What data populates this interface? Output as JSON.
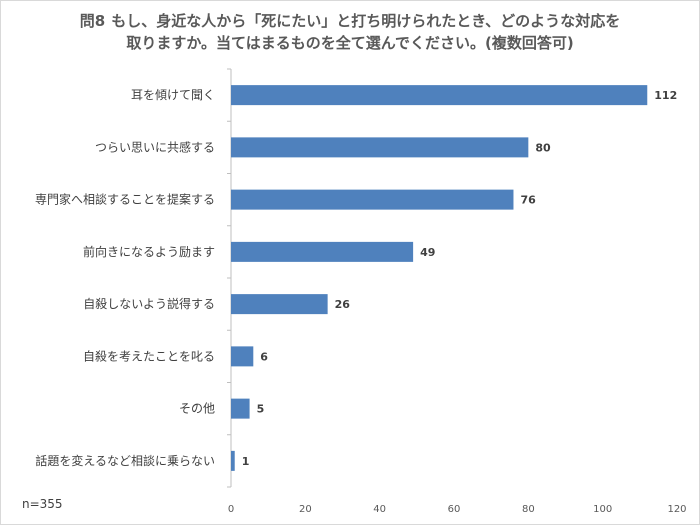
{
  "chart_data": {
    "type": "bar",
    "orientation": "horizontal",
    "question_number": "問8",
    "title_line1": "もし、身近な人から「死にたい」と打ち明けられたとき、どのような対応を",
    "title_line2": "取りますか。当てはまるものを全て選んでください。(複数回答可)",
    "categories": [
      "耳を傾けて聞く",
      "つらい思いに共感する",
      "専門家へ相談することを提案する",
      "前向きになるよう励ます",
      "自殺しないよう説得する",
      "自殺を考えたことを叱る",
      "その他",
      "話題を変えるなど相談に乗らない"
    ],
    "values": [
      112,
      80,
      76,
      49,
      26,
      6,
      5,
      1
    ],
    "xlim": [
      0,
      120
    ],
    "xticks": [
      0,
      20,
      40,
      60,
      80,
      100,
      120
    ],
    "grid": false,
    "bar_color": "#4f81bd",
    "sample_size": "n=355"
  }
}
